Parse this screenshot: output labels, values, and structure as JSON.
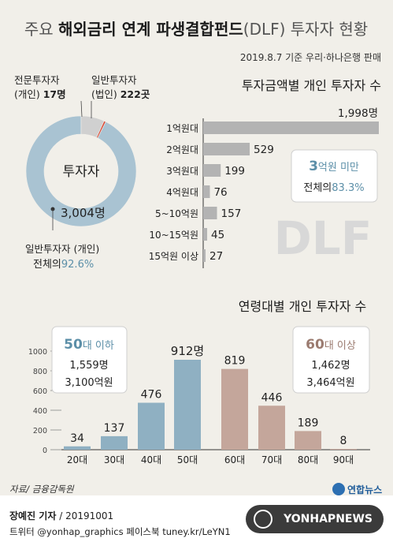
{
  "header": {
    "title_prefix": "주요",
    "title_bold": "해외금리 연계 파생결합펀드",
    "title_suffix": "(DLF) 투자자 현황",
    "subtitle": "2019.8.7 기준 우리·하나은행 판매"
  },
  "donut": {
    "center_label": "투자자",
    "segments": [
      {
        "label": "일반투자자 (개인)",
        "value": 3004,
        "value_text": "3,004명",
        "color": "#a9c3d2"
      },
      {
        "label": "일반투자자 (법인)",
        "value": 222,
        "value_text": "222곳",
        "color": "#d0d0d0"
      },
      {
        "label": "전문투자자 (개인)",
        "value": 17,
        "value_text": "17명",
        "color": "#d64b3a"
      }
    ],
    "pro_line1": "전문투자자",
    "pro_line2": "(개인)",
    "pro_value": "17명",
    "corp_line1": "일반투자자",
    "corp_line2": "(법인)",
    "corp_value": "222곳",
    "indiv_value": "3,004명",
    "indiv_line1": "일반투자자 (개인)",
    "indiv_line2_prefix": "전체의",
    "indiv_line2_value": "92.6%"
  },
  "chart_data": [
    {
      "type": "bar",
      "orientation": "horizontal",
      "title": "투자금액별 개인 투자자 수",
      "categories": [
        "1억원대",
        "2억원대",
        "3억원대",
        "4억원대",
        "5~10억원",
        "10~15억원",
        "15억원 이상"
      ],
      "values": [
        1998,
        529,
        199,
        76,
        157,
        45,
        27
      ],
      "value_labels": [
        "1,998명",
        "529",
        "199",
        "76",
        "157",
        "45",
        "27"
      ],
      "bar_color": "#b3b3b3",
      "callout": {
        "bold": "3",
        "rest": "억원 미만",
        "line2_prefix": "전체의",
        "line2_value": "83.3%"
      },
      "watermark": "DLF"
    },
    {
      "type": "bar",
      "title": "연령대별 개인 투자자 수",
      "categories": [
        "20대",
        "30대",
        "40대",
        "50대",
        "60대",
        "70대",
        "80대",
        "90대"
      ],
      "values": [
        34,
        137,
        476,
        912,
        819,
        446,
        189,
        8
      ],
      "value_labels": [
        "34",
        "137",
        "476",
        "912명",
        "819",
        "446",
        "189",
        "8"
      ],
      "colors": [
        "#8fb0c2",
        "#8fb0c2",
        "#8fb0c2",
        "#8fb0c2",
        "#c4a69b",
        "#c4a69b",
        "#c4a69b",
        "#c4a69b"
      ],
      "ylim": [
        0,
        1000
      ],
      "yticks": [
        0,
        200,
        400,
        600,
        800,
        1000
      ],
      "ytick_labels": [
        "0",
        "200",
        "400",
        "600",
        "800",
        "1000"
      ],
      "callout_left": {
        "title_bold": "50",
        "title_rest": "대 이하",
        "line1": "1,559명",
        "line2": "3,100억원"
      },
      "callout_right": {
        "title_bold": "60",
        "title_rest": "대 이상",
        "line1": "1,462명",
        "line2": "3,464억원"
      }
    }
  ],
  "footer": {
    "source": "자료/ 금융감독원",
    "logo_text": "연합뉴스",
    "reporter": "장예진 기자",
    "date": "/ 20191001",
    "social": "트위터 @yonhap_graphics  페이스북 tuney.kr/LeYN1",
    "brand": "YONHAPNEWS"
  }
}
